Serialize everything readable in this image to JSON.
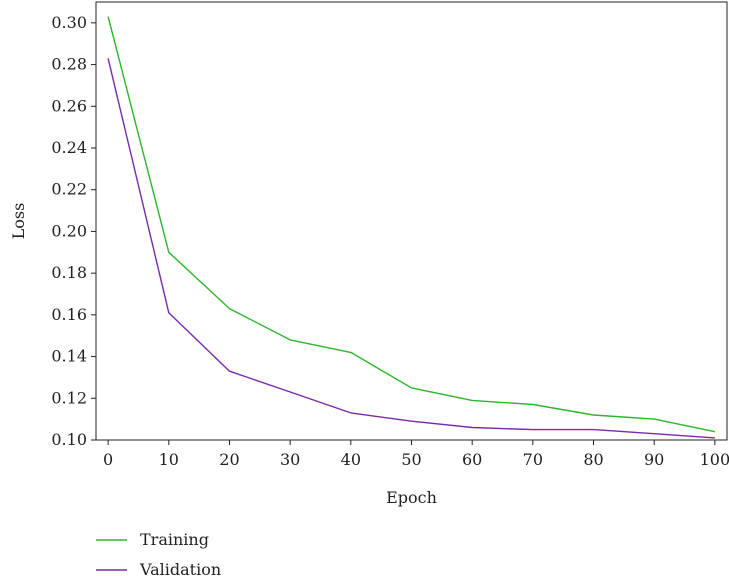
{
  "chart_data": {
    "type": "line",
    "title": "",
    "xlabel": "Epoch",
    "ylabel": "Loss",
    "x": [
      0,
      10,
      20,
      30,
      40,
      50,
      60,
      70,
      80,
      90,
      100
    ],
    "xlim": [
      -2,
      102
    ],
    "ylim": [
      0.1,
      0.31
    ],
    "x_ticks": [
      "0",
      "10",
      "20",
      "30",
      "40",
      "50",
      "60",
      "70",
      "80",
      "90",
      "100"
    ],
    "y_ticks": [
      "0.10",
      "0.12",
      "0.14",
      "0.16",
      "0.18",
      "0.20",
      "0.22",
      "0.24",
      "0.26",
      "0.28",
      "0.30"
    ],
    "grid": false,
    "legend_position": "bottom-left",
    "series": [
      {
        "name": "Training",
        "color": "#2db52d",
        "values": [
          0.303,
          0.19,
          0.163,
          0.148,
          0.142,
          0.125,
          0.119,
          0.117,
          0.112,
          0.11,
          0.104
        ]
      },
      {
        "name": "Validation",
        "color": "#7a2aa8",
        "values": [
          0.283,
          0.161,
          0.133,
          0.123,
          0.113,
          0.109,
          0.106,
          0.105,
          0.105,
          0.103,
          0.101
        ]
      }
    ]
  }
}
